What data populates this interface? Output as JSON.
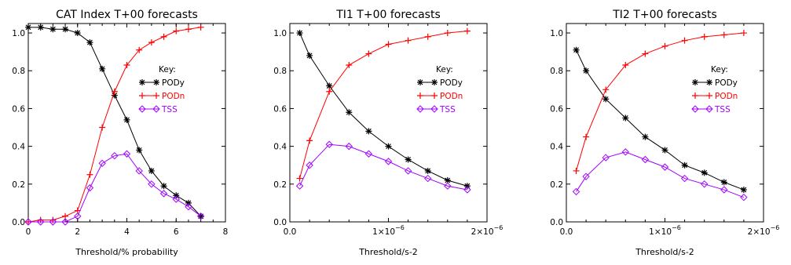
{
  "chart_data": [
    {
      "type": "line",
      "title": "CAT Index T+00 forecasts",
      "xlabel": "Threshold/% probability",
      "ylabel": "",
      "xlim": [
        0,
        8
      ],
      "ylim": [
        0,
        1.05
      ],
      "x_ticks": [
        "0",
        "2",
        "4",
        "6",
        "8"
      ],
      "y_ticks": [
        "0.0",
        "0.2",
        "0.4",
        "0.6",
        "0.8",
        "1.0"
      ],
      "key_title": "Key:",
      "legend_placement": "right-center",
      "x": [
        0,
        0.5,
        1,
        1.5,
        2,
        2.5,
        3,
        3.5,
        4,
        4.5,
        5,
        5.5,
        6,
        6.5,
        7
      ],
      "series": [
        {
          "name": "PODy",
          "color": "#000000",
          "marker": "asterisk",
          "values": [
            1.03,
            1.03,
            1.02,
            1.02,
            1.0,
            0.95,
            0.81,
            0.67,
            0.54,
            0.38,
            0.27,
            0.19,
            0.14,
            0.1,
            0.03
          ]
        },
        {
          "name": "PODn",
          "color": "#ff0000",
          "marker": "plus",
          "values": [
            0.0,
            0.01,
            0.01,
            0.03,
            0.06,
            0.25,
            0.5,
            0.69,
            0.83,
            0.91,
            0.95,
            0.98,
            1.01,
            1.02,
            1.03
          ]
        },
        {
          "name": "TSS",
          "color": "#a000ff",
          "marker": "diamond",
          "values": [
            0.0,
            0.0,
            0.0,
            0.0,
            0.03,
            0.18,
            0.31,
            0.35,
            0.36,
            0.27,
            0.2,
            0.15,
            0.12,
            0.08,
            0.03
          ]
        }
      ]
    },
    {
      "type": "line",
      "title": "TI1 T+00 forecasts",
      "xlabel": "Threshold/s-2",
      "ylabel": "",
      "xlim": [
        0,
        2e-06
      ],
      "ylim": [
        0,
        1.05
      ],
      "x_ticks": [
        {
          "value": 0,
          "mant": "0.0",
          "exp": ""
        },
        {
          "value": 1e-06,
          "mant": "1×10",
          "exp": "−6"
        },
        {
          "value": 2e-06,
          "mant": "2×10",
          "exp": "−6"
        }
      ],
      "y_ticks": [
        "0.0",
        "0.2",
        "0.4",
        "0.6",
        "0.8",
        "1.0"
      ],
      "key_title": "Key:",
      "legend_placement": "right-center",
      "x": [
        1e-07,
        2e-07,
        4e-07,
        6e-07,
        8e-07,
        1e-06,
        1.2e-06,
        1.4e-06,
        1.6e-06,
        1.8e-06
      ],
      "series": [
        {
          "name": "PODy",
          "color": "#000000",
          "marker": "asterisk",
          "values": [
            1.0,
            0.88,
            0.72,
            0.58,
            0.48,
            0.4,
            0.33,
            0.27,
            0.22,
            0.19
          ]
        },
        {
          "name": "PODn",
          "color": "#ff0000",
          "marker": "plus",
          "values": [
            0.23,
            0.43,
            0.69,
            0.83,
            0.89,
            0.94,
            0.96,
            0.98,
            1.0,
            1.01
          ]
        },
        {
          "name": "TSS",
          "color": "#a000ff",
          "marker": "diamond",
          "values": [
            0.19,
            0.3,
            0.41,
            0.4,
            0.36,
            0.32,
            0.27,
            0.23,
            0.19,
            0.17
          ]
        }
      ]
    },
    {
      "type": "line",
      "title": "TI2 T+00 forecasts",
      "xlabel": "Threshold/s-2",
      "ylabel": "",
      "xlim": [
        0,
        2e-06
      ],
      "ylim": [
        0,
        1.05
      ],
      "x_ticks": [
        {
          "value": 0,
          "mant": "0.0",
          "exp": ""
        },
        {
          "value": 1e-06,
          "mant": "1×10",
          "exp": "−6"
        },
        {
          "value": 2e-06,
          "mant": "2×10",
          "exp": "−6"
        }
      ],
      "y_ticks": [
        "0.0",
        "0.2",
        "0.4",
        "0.6",
        "0.8",
        "1.0"
      ],
      "key_title": "Key:",
      "legend_placement": "right-center",
      "x": [
        1e-07,
        2e-07,
        4e-07,
        6e-07,
        8e-07,
        1e-06,
        1.2e-06,
        1.4e-06,
        1.6e-06,
        1.8e-06
      ],
      "series": [
        {
          "name": "PODy",
          "color": "#000000",
          "marker": "asterisk",
          "values": [
            0.91,
            0.8,
            0.65,
            0.55,
            0.45,
            0.38,
            0.3,
            0.26,
            0.21,
            0.17
          ]
        },
        {
          "name": "PODn",
          "color": "#ff0000",
          "marker": "plus",
          "values": [
            0.27,
            0.45,
            0.7,
            0.83,
            0.89,
            0.93,
            0.96,
            0.98,
            0.99,
            1.0
          ]
        },
        {
          "name": "TSS",
          "color": "#a000ff",
          "marker": "diamond",
          "values": [
            0.16,
            0.24,
            0.34,
            0.37,
            0.33,
            0.29,
            0.23,
            0.2,
            0.17,
            0.13
          ]
        }
      ]
    }
  ]
}
